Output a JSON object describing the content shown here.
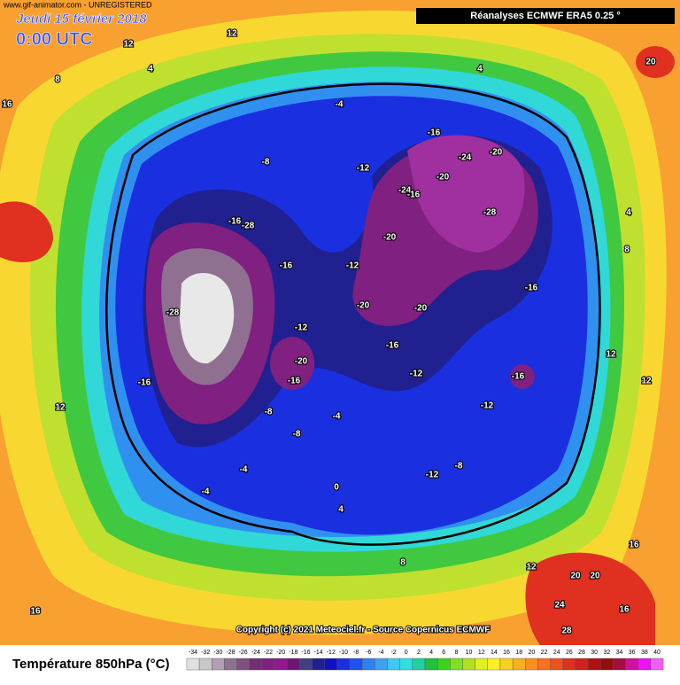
{
  "header": {
    "watermark": "www.gif-animator.com - UNREGISTERED",
    "date": "Jeudi 15 février 2018",
    "time": "0:00 UTC",
    "source_box": "Réanalyses ECMWF ERA5 0.25 °"
  },
  "copyright": "Copyright (c) 2021 Meteociel.fr - Source Copernicus ECMWF",
  "contour_labels": [
    "12",
    "12",
    "4",
    "8",
    "16",
    "-4",
    "-16",
    "-24",
    "-20",
    "-28",
    "-24",
    "-20",
    "-16",
    "-12",
    "-8",
    "-16",
    "-28",
    "-16",
    "-12",
    "-20",
    "-20",
    "-20",
    "-16",
    "-12",
    "-16",
    "-8",
    "-20",
    "-16",
    "-12",
    "-4",
    "-8",
    "-12",
    "-8",
    "-4",
    "0",
    "4",
    "8",
    "12",
    "12",
    "16",
    "20",
    "24",
    "20",
    "28",
    "16",
    "12",
    "8",
    "4",
    "20",
    "-16",
    "-12",
    "-28",
    "-16",
    "-4",
    "4",
    "12",
    "16"
  ],
  "legend": {
    "title": "Température 850hPa (°C)",
    "ticks": [
      -34,
      -32,
      -30,
      -28,
      -26,
      -24,
      -22,
      -20,
      -18,
      -16,
      -14,
      -12,
      -10,
      -8,
      -6,
      -4,
      -2,
      0,
      2,
      4,
      6,
      8,
      10,
      12,
      14,
      16,
      18,
      20,
      22,
      24,
      26,
      28,
      30,
      32,
      34,
      36,
      38,
      40
    ],
    "colors": [
      "#e0e0e0",
      "#c8c8c8",
      "#b0a0b0",
      "#907090",
      "#805080",
      "#703070",
      "#802080",
      "#901890",
      "#6a1a70",
      "#404080",
      "#202090",
      "#1010c0",
      "#1a30e0",
      "#2050f0",
      "#3080f0",
      "#40a0f0",
      "#40c8f0",
      "#30e0e0",
      "#20d0a0",
      "#20c040",
      "#40d020",
      "#80e020",
      "#b0e020",
      "#e0f020",
      "#f8f020",
      "#f8d020",
      "#f8b020",
      "#f89020",
      "#f87020",
      "#f05020",
      "#e03020",
      "#d02020",
      "#b01010",
      "#901010",
      "#a01040",
      "#d010a0",
      "#f010f0",
      "#f060f0"
    ]
  }
}
